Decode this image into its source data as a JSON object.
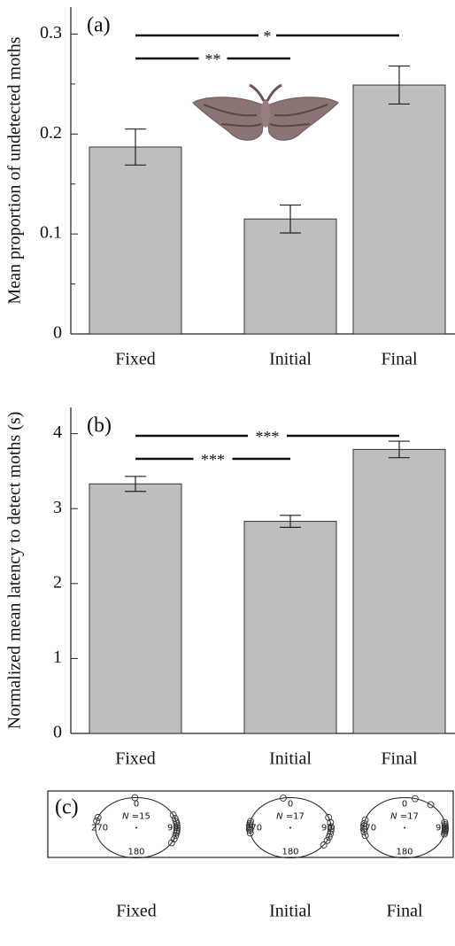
{
  "chart_data": [
    {
      "type": "bar",
      "panel_label": "(a)",
      "y_label": "Mean proportion of undetected moths",
      "categories": [
        "Fixed",
        "Initial",
        "Final"
      ],
      "values": [
        0.187,
        0.115,
        0.249
      ],
      "errors": [
        0.018,
        0.014,
        0.019
      ],
      "color": "#bebebe",
      "ylim": [
        0,
        0.327
      ],
      "yticks": [
        0,
        0.1,
        0.2,
        0.3
      ],
      "yminorticks": [
        0.05,
        0.15,
        0.25
      ],
      "annotations": [
        {
          "text": "*",
          "between": [
            "Fixed",
            "Final"
          ]
        },
        {
          "text": "**",
          "between": [
            "Fixed",
            "Initial"
          ]
        }
      ]
    },
    {
      "type": "bar",
      "panel_label": "(b)",
      "y_label": "Normalized mean latency to detect moths (s)",
      "categories": [
        "Fixed",
        "Initial",
        "Final"
      ],
      "values": [
        3.33,
        2.83,
        3.79
      ],
      "errors": [
        0.1,
        0.08,
        0.11
      ],
      "color": "#bebebe",
      "ylim": [
        0,
        4.35
      ],
      "yticks": [
        0,
        1,
        2,
        3,
        4
      ],
      "annotations": [
        {
          "text": "***",
          "between": [
            "Fixed",
            "Final"
          ]
        },
        {
          "text": "***",
          "between": [
            "Fixed",
            "Initial"
          ]
        }
      ]
    },
    {
      "type": "circular",
      "panel_label": "(c)",
      "angle_ticks": [
        0,
        90,
        180,
        270
      ],
      "n_text": "N =",
      "series": [
        {
          "name": "Fixed",
          "n": 15,
          "values": [
            358,
            290,
            283,
            65,
            72,
            78,
            82,
            86,
            90,
            94,
            97,
            100,
            105,
            112,
            120
          ]
        },
        {
          "name": "Initial",
          "n": 17,
          "values": [
            350,
            260,
            265,
            268,
            272,
            275,
            278,
            282,
            70,
            80,
            88,
            92,
            96,
            102,
            108,
            115,
            125
          ]
        },
        {
          "name": "Final",
          "n": 17,
          "values": [
            15,
            255,
            262,
            268,
            273,
            278,
            285,
            40,
            80,
            84,
            87,
            90,
            92,
            94,
            96,
            99,
            102
          ]
        }
      ]
    }
  ]
}
